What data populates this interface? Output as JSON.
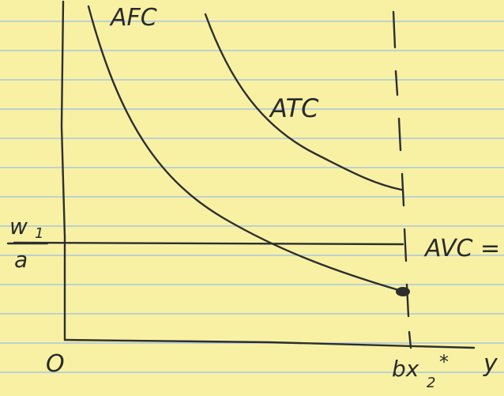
{
  "labels": {
    "afc": "AFC",
    "atc": "ATC",
    "avc": "AVC =",
    "wage": {
      "numerator": "w",
      "numerator_subscript": "1",
      "denominator": "a"
    },
    "origin": "O",
    "capacity": {
      "main": "bx",
      "subscript": "2",
      "superscript": "*"
    },
    "x_axis": "y"
  }
}
